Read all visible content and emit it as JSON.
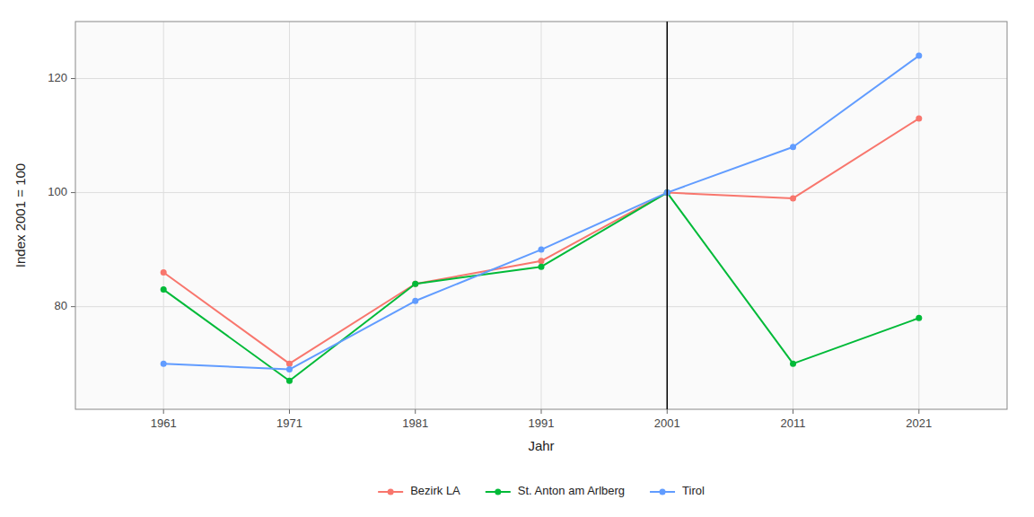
{
  "chart_data": {
    "type": "line",
    "x_label": "Jahr",
    "y_label": "Index 2001 = 100",
    "x": [
      1961,
      1971,
      1981,
      1991,
      2001,
      2011,
      2021
    ],
    "series": [
      {
        "name": "Bezirk LA",
        "color": "#F8766D",
        "values": [
          86,
          70,
          84,
          88,
          100,
          99,
          113
        ]
      },
      {
        "name": "St. Anton am Arlberg",
        "color": "#00BA38",
        "values": [
          83,
          67,
          84,
          87,
          100,
          70,
          78
        ]
      },
      {
        "name": "Tirol",
        "color": "#619CFF",
        "values": [
          70,
          69,
          81,
          90,
          100,
          108,
          124
        ]
      }
    ],
    "xlim": [
      1954,
      2028
    ],
    "xticks": [
      1961,
      1971,
      1981,
      1991,
      2001,
      2011,
      2021
    ],
    "ylim": [
      62,
      130
    ],
    "yticks": [
      80,
      100,
      120
    ],
    "annotations": [
      {
        "type": "vline",
        "x": 2001
      }
    ],
    "marker": "circle",
    "grid": true,
    "legend": "bottom"
  }
}
